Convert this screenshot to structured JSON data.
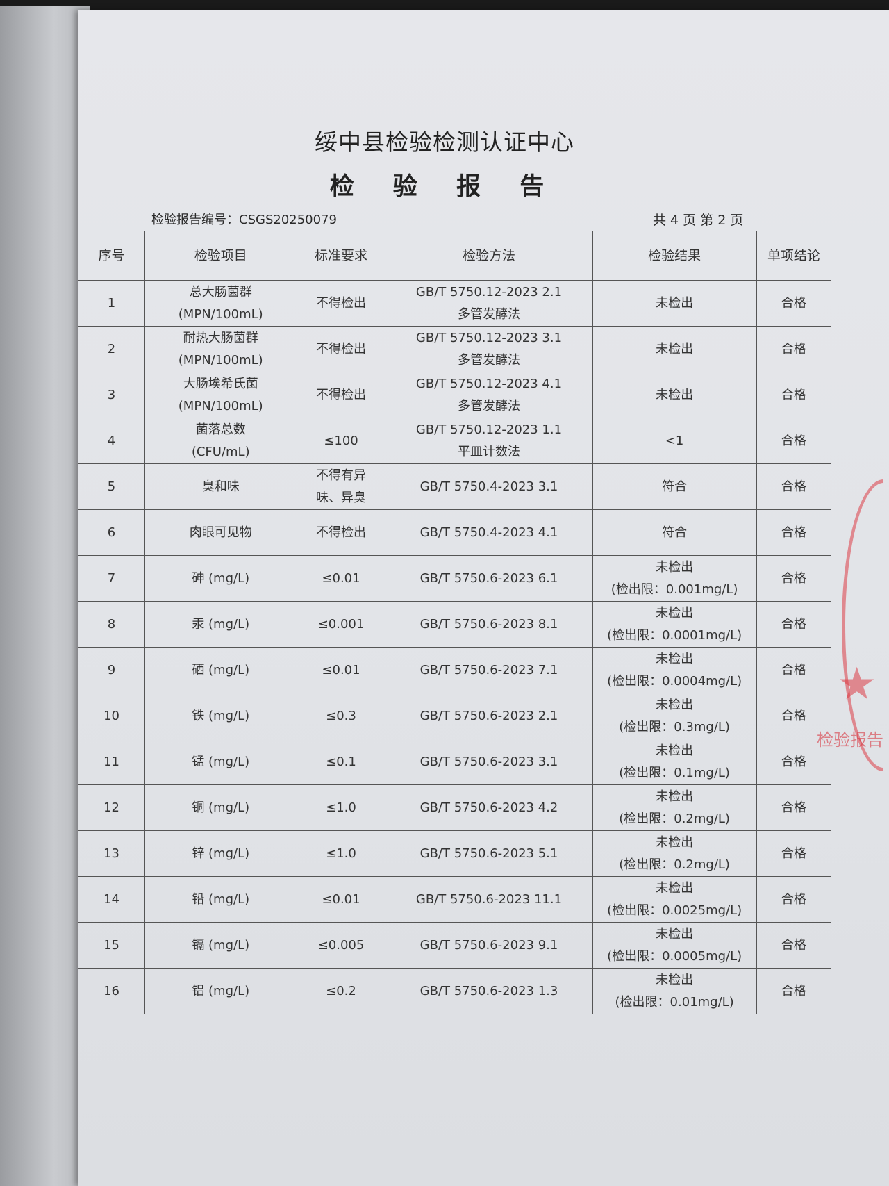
{
  "header": {
    "org": "绥中县检验检测认证中心",
    "title": "检 验 报 告",
    "report_no": "检验报告编号：CSGS20250079",
    "page_info": "共 4 页  第 2 页"
  },
  "table": {
    "columns": [
      "序号",
      "检验项目",
      "标准要求",
      "检验方法",
      "检验结果",
      "单项结论"
    ],
    "rows": [
      [
        "1",
        "总大肠菌群\n(MPN/100mL)",
        "不得检出",
        "GB/T 5750.12-2023  2.1\n多管发酵法",
        "未检出",
        "合格"
      ],
      [
        "2",
        "耐热大肠菌群\n(MPN/100mL)",
        "不得检出",
        "GB/T 5750.12-2023  3.1\n多管发酵法",
        "未检出",
        "合格"
      ],
      [
        "3",
        "大肠埃希氏菌\n(MPN/100mL)",
        "不得检出",
        "GB/T 5750.12-2023  4.1\n多管发酵法",
        "未检出",
        "合格"
      ],
      [
        "4",
        "菌落总数\n(CFU/mL)",
        "≤100",
        "GB/T 5750.12-2023  1.1\n平皿计数法",
        "<1",
        "合格"
      ],
      [
        "5",
        "臭和味",
        "不得有异\n味、异臭",
        "GB/T 5750.4-2023  3.1",
        "符合",
        "合格"
      ],
      [
        "6",
        "肉眼可见物",
        "不得检出",
        "GB/T 5750.4-2023  4.1",
        "符合",
        "合格"
      ],
      [
        "7",
        "砷 (mg/L)",
        "≤0.01",
        "GB/T 5750.6-2023  6.1",
        "未检出\n(检出限：0.001mg/L)",
        "合格"
      ],
      [
        "8",
        "汞 (mg/L)",
        "≤0.001",
        "GB/T 5750.6-2023  8.1",
        "未检出\n(检出限：0.0001mg/L)",
        "合格"
      ],
      [
        "9",
        "硒 (mg/L)",
        "≤0.01",
        "GB/T 5750.6-2023  7.1",
        "未检出\n(检出限：0.0004mg/L)",
        "合格"
      ],
      [
        "10",
        "铁 (mg/L)",
        "≤0.3",
        "GB/T 5750.6-2023  2.1",
        "未检出\n(检出限：0.3mg/L)",
        "合格"
      ],
      [
        "11",
        "锰 (mg/L)",
        "≤0.1",
        "GB/T 5750.6-2023  3.1",
        "未检出\n(检出限：0.1mg/L)",
        "合格"
      ],
      [
        "12",
        "铜 (mg/L)",
        "≤1.0",
        "GB/T 5750.6-2023  4.2",
        "未检出\n(检出限：0.2mg/L)",
        "合格"
      ],
      [
        "13",
        "锌 (mg/L)",
        "≤1.0",
        "GB/T 5750.6-2023  5.1",
        "未检出\n(检出限：0.2mg/L)",
        "合格"
      ],
      [
        "14",
        "铅 (mg/L)",
        "≤0.01",
        "GB/T 5750.6-2023  11.1",
        "未检出\n(检出限：0.0025mg/L)",
        "合格"
      ],
      [
        "15",
        "镉 (mg/L)",
        "≤0.005",
        "GB/T 5750.6-2023  9.1",
        "未检出\n(检出限：0.0005mg/L)",
        "合格"
      ],
      [
        "16",
        "铝 (mg/L)",
        "≤0.2",
        "GB/T 5750.6-2023  1.3",
        "未检出\n(检出限：0.01mg/L)",
        "合格"
      ]
    ]
  },
  "stamp": {
    "text": "检验报告",
    "color": "#d83c46"
  }
}
